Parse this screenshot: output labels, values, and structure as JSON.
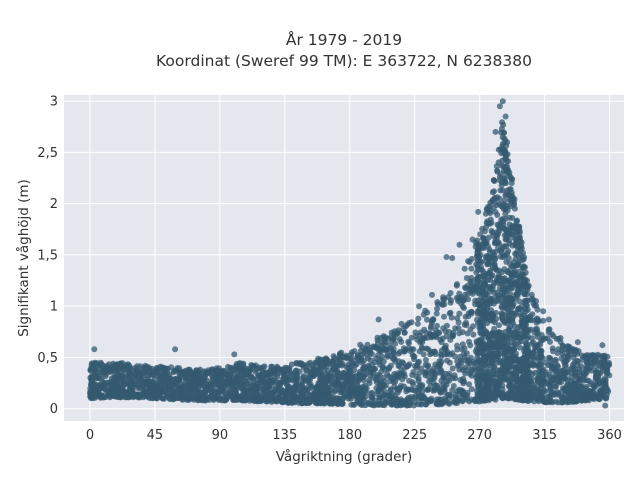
{
  "chart_data": {
    "type": "scatter",
    "title": "År 1979 - 2019",
    "subtitle": "Koordinat (Sweref 99 TM): E 363722, N 6238380",
    "xlabel": "Vågriktning (grader)",
    "ylabel": "Signifikant våghöjd (m)",
    "xlim": [
      -18,
      370
    ],
    "ylim": [
      -0.12,
      3.06
    ],
    "x_ticks": [
      0,
      45,
      90,
      135,
      180,
      225,
      270,
      315,
      360
    ],
    "y_ticks": [
      0,
      0.5,
      1,
      1.5,
      2,
      2.5,
      3
    ],
    "y_tick_labels": [
      "0",
      "0,5",
      "1",
      "1,5",
      "2",
      "2,5",
      "3"
    ],
    "grid": true,
    "marker_color": "#345a70",
    "plot_background": "#e5e7ef",
    "envelope": {
      "direction": [
        0,
        15,
        30,
        45,
        60,
        75,
        90,
        105,
        120,
        135,
        150,
        165,
        180,
        195,
        210,
        225,
        240,
        255,
        262,
        270,
        277,
        282,
        286,
        290,
        295,
        300,
        305,
        315,
        330,
        345,
        360
      ],
      "lower": [
        0.1,
        0.11,
        0.11,
        0.1,
        0.09,
        0.08,
        0.08,
        0.08,
        0.07,
        0.06,
        0.05,
        0.05,
        0.04,
        0.03,
        0.03,
        0.03,
        0.04,
        0.05,
        0.06,
        0.07,
        0.08,
        0.09,
        0.1,
        0.1,
        0.09,
        0.08,
        0.07,
        0.06,
        0.06,
        0.08,
        0.1
      ],
      "upper": [
        0.45,
        0.45,
        0.44,
        0.42,
        0.4,
        0.38,
        0.4,
        0.45,
        0.42,
        0.42,
        0.47,
        0.52,
        0.58,
        0.67,
        0.78,
        0.9,
        1.05,
        1.28,
        1.45,
        1.72,
        2.05,
        2.5,
        2.85,
        2.5,
        2.0,
        1.55,
        1.15,
        0.85,
        0.62,
        0.55,
        0.52
      ]
    },
    "sample_points": [
      {
        "x": 3,
        "y": 0.58
      },
      {
        "x": 59,
        "y": 0.58
      },
      {
        "x": 100,
        "y": 0.53
      },
      {
        "x": 200,
        "y": 0.87
      },
      {
        "x": 228,
        "y": 1.0
      },
      {
        "x": 237,
        "y": 1.11
      },
      {
        "x": 247,
        "y": 1.48
      },
      {
        "x": 251,
        "y": 1.47
      },
      {
        "x": 256,
        "y": 1.6
      },
      {
        "x": 262,
        "y": 1.44
      },
      {
        "x": 265,
        "y": 1.65
      },
      {
        "x": 269,
        "y": 1.92
      },
      {
        "x": 281,
        "y": 2.7
      },
      {
        "x": 284,
        "y": 2.95
      },
      {
        "x": 286,
        "y": 3.0
      },
      {
        "x": 288,
        "y": 2.85
      },
      {
        "x": 289,
        "y": 2.6
      },
      {
        "x": 296,
        "y": 1.73
      },
      {
        "x": 300,
        "y": 1.52
      },
      {
        "x": 304,
        "y": 1.2
      },
      {
        "x": 309,
        "y": 1.05
      },
      {
        "x": 314,
        "y": 0.95
      },
      {
        "x": 318,
        "y": 0.87
      },
      {
        "x": 326,
        "y": 0.69
      },
      {
        "x": 338,
        "y": 0.65
      },
      {
        "x": 355,
        "y": 0.62
      },
      {
        "x": 357,
        "y": 0.03
      }
    ]
  }
}
